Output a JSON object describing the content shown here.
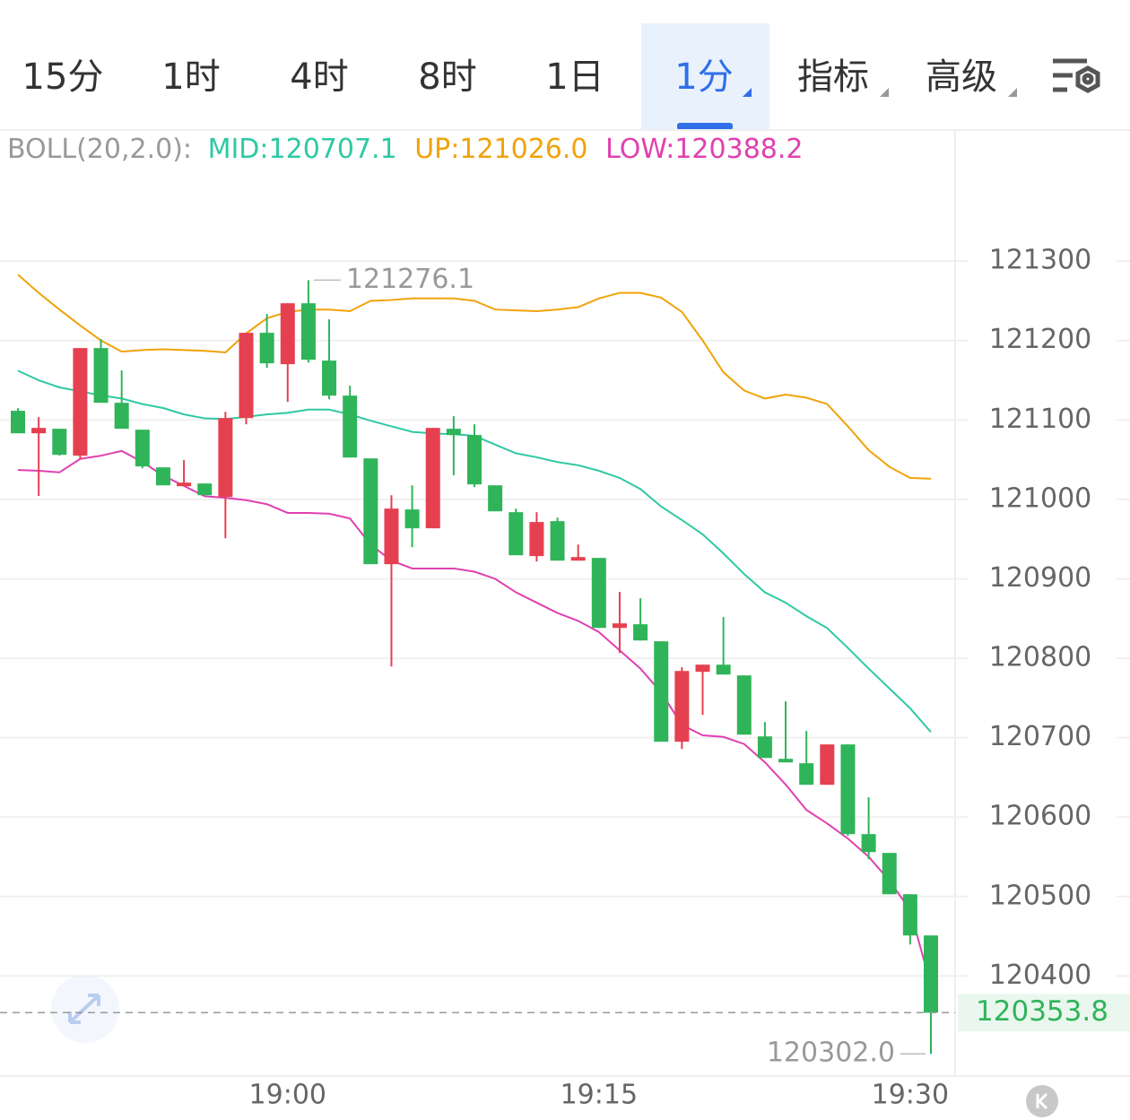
{
  "tabs": {
    "items": [
      "15分",
      "1时",
      "4时",
      "8时",
      "1日",
      "1分",
      "指标",
      "高级"
    ],
    "active": 5
  },
  "chart_data": {
    "type": "candlestick",
    "boll_label": "BOLL(20,2.0):",
    "categories": [
      null,
      null,
      null,
      null,
      null,
      null,
      null,
      null,
      null,
      null,
      null,
      null,
      null,
      "19:00",
      null,
      null,
      null,
      null,
      null,
      null,
      null,
      null,
      null,
      null,
      null,
      null,
      null,
      null,
      "19:15",
      null,
      null,
      null,
      null,
      null,
      null,
      null,
      null,
      null,
      null,
      null,
      null,
      null,
      null,
      "19:30",
      null
    ],
    "open": [
      121111.5,
      121083.2,
      121088.9,
      121055,
      121190.5,
      121121.6,
      121087.7,
      121040.3,
      121016.6,
      121020,
      121003.1,
      121102.4,
      121209.7,
      121170.2,
      121246.9,
      121174.7,
      121130.6,
      121051.6,
      120918.4,
      120987.3,
      120963.6,
      121088.9,
      121081,
      121017.7,
      120983.9,
      120928.6,
      120972.6,
      120922.9,
      120926.3,
      120838.2,
      120842.8,
      120821.3,
      120694.9,
      120782.9,
      120791.9,
      120778.4,
      120701.6,
      120673.4,
      120667.8,
      120640.7,
      120691.5,
      120578.6,
      120554.9,
      120502.9,
      120451
    ],
    "high": [
      121114.8,
      121103.6,
      121088.9,
      121190.5,
      121201.8,
      121162.3,
      121087.7,
      121040.3,
      121049.4,
      121020,
      121110.3,
      121209.7,
      121233.4,
      121246.9,
      121276.1,
      121226.6,
      121143.1,
      121051.6,
      121005.3,
      121017.7,
      121090,
      121104.7,
      121094.5,
      121017.7,
      120988.4,
      120983.9,
      120977.1,
      120943.2,
      120926.3,
      120883.4,
      120875.5,
      120821.3,
      120788.6,
      120791.9,
      120851.8,
      120778.4,
      120719.7,
      120745.7,
      120708.4,
      120691.5,
      120691.5,
      120624.9,
      120554.9,
      120502.9,
      120451
    ],
    "low": [
      121083.2,
      121004.2,
      121055,
      121050.5,
      121121.6,
      121088.9,
      121039.2,
      121017.7,
      121016.6,
      121005.3,
      120951.1,
      121094.5,
      121165.6,
      121122.7,
      121172.4,
      121126.1,
      121052.7,
      120918.4,
      120789.7,
      120939.8,
      120963.6,
      121030.2,
      121015.5,
      120985,
      120929.7,
      120921.8,
      120922.9,
      120922.9,
      120838.2,
      120806.6,
      120822.4,
      120694.9,
      120685.8,
      120728.7,
      120779.5,
      120703.9,
      120674.5,
      120668.9,
      120640.7,
      120640.7,
      120576.3,
      120547,
      120502.9,
      120439.7,
      120302.0
    ],
    "close": [
      121083.2,
      121090,
      121056.1,
      121190.5,
      121121.6,
      121088.9,
      121041.5,
      121017.7,
      121021.1,
      121005.3,
      121102.4,
      121209.7,
      121171.3,
      121246.9,
      121175.8,
      121130.6,
      121052.7,
      120918.4,
      120988.4,
      120963.6,
      121090,
      121081,
      121018.9,
      120985,
      120929.7,
      120971.5,
      120922.9,
      120927.4,
      120838.2,
      120843.9,
      120822.4,
      120694.9,
      120784,
      120791.9,
      120779.5,
      120703.9,
      120674.5,
      120668.9,
      120640.7,
      120691.5,
      120578.6,
      120556,
      120502.9,
      120451,
      120353.8
    ],
    "up_color": "#e5404f",
    "down_color": "#2fb45a",
    "series": [
      {
        "name": "MID:120707.1",
        "color": "#2ec9a4",
        "values": [
          121162,
          121150,
          121141,
          121136,
          121131,
          121127,
          121120,
          121115,
          121107,
          121102,
          121101,
          121104,
          121107,
          121109,
          121113,
          121113,
          121107,
          121099,
          121092,
          121085,
          121083,
          121082,
          121080,
          121069,
          121058,
          121053,
          121047,
          121043,
          121036,
          121027,
          121013,
          120991,
          120974,
          120956,
          120932,
          120906,
          120883,
          120870,
          120853,
          120838,
          120813,
          120787,
          120762,
          120737,
          120707.1
        ]
      },
      {
        "name": "UP:121026.0",
        "color": "#f0a30a",
        "values": [
          121283,
          121260,
          121239,
          121219,
          121200,
          121186,
          121188,
          121189,
          121188,
          121187,
          121185,
          121209,
          121228,
          121236,
          121239,
          121239,
          121237,
          121250,
          121251,
          121253,
          121253,
          121253,
          121250,
          121239,
          121238,
          121237,
          121239,
          121242,
          121253,
          121260,
          121260,
          121254,
          121236,
          121200,
          121160,
          121137,
          121127,
          121132,
          121128,
          121120,
          121092,
          121062,
          121041,
          121027,
          121026.0
        ]
      },
      {
        "name": "LOW:120388.2",
        "color": "#e040b0",
        "values": [
          121037,
          121036,
          121034,
          121051,
          121055,
          121061,
          121047,
          121030,
          121017,
          121004,
          121002,
          120999,
          120994,
          120983,
          120983,
          120982,
          120976,
          120943,
          120923,
          120913,
          120913,
          120913,
          120909,
          120900,
          120883,
          120870,
          120857,
          120847,
          120833,
          120810,
          120787,
          120757,
          120716,
          120703,
          120701,
          120692,
          120669,
          120641,
          120609,
          120592,
          120573,
          120550,
          120520,
          120483,
          120388.2
        ]
      }
    ],
    "ylim": [
      120274,
      121465
    ],
    "yticks": [
      120400,
      120500,
      120600,
      120700,
      120800,
      120900,
      121000,
      121100,
      121200,
      121300
    ],
    "grid": true,
    "last_price": 120353.8,
    "high_label": "121276.1",
    "low_label": "120302.0"
  }
}
